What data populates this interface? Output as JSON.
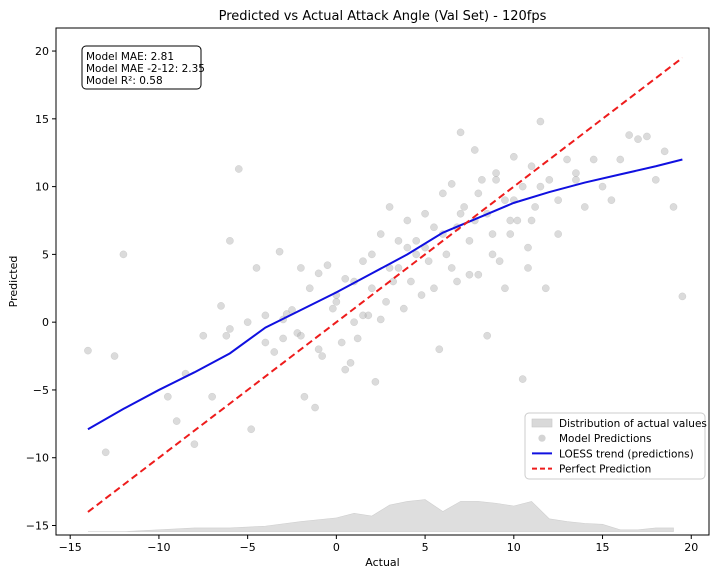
{
  "chart_data": {
    "type": "scatter",
    "title": "Predicted vs Actual Attack Angle (Val Set) - 120fps",
    "xlabel": "Actual",
    "ylabel": "Predicted",
    "xlim": [
      -15.8,
      21.0
    ],
    "ylim": [
      -15.7,
      21.7
    ],
    "xticks": [
      -15,
      -10,
      -5,
      0,
      5,
      10,
      15,
      20
    ],
    "yticks": [
      -15,
      -10,
      -5,
      0,
      5,
      10,
      15,
      20
    ],
    "grid": false,
    "legend_position": "lower-right",
    "stats_box": [
      "Model MAE: 2.81",
      "Model MAE -2-12: 2.35",
      "Model R²: 0.58"
    ],
    "legend": [
      {
        "label": "Distribution of actual values",
        "kind": "area",
        "color": "#d9d9d9"
      },
      {
        "label": "Model Predictions",
        "kind": "point",
        "color": "#b0b0b0"
      },
      {
        "label": "LOESS trend (predictions)",
        "kind": "line",
        "color": "#1010e0"
      },
      {
        "label": "Perfect Prediction",
        "kind": "dashed",
        "color": "#ee1c1c"
      }
    ],
    "series": [
      {
        "name": "LOESS trend (predictions)",
        "color": "#1010e0",
        "x": [
          -14,
          -12,
          -10,
          -8,
          -6,
          -4,
          -2,
          0,
          2,
          4,
          6,
          8,
          10,
          12,
          14,
          16,
          18,
          19.5
        ],
        "y": [
          -7.9,
          -6.4,
          -5.0,
          -3.7,
          -2.3,
          -0.4,
          0.9,
          2.2,
          3.6,
          5.0,
          6.6,
          7.7,
          8.8,
          9.6,
          10.3,
          10.9,
          11.5,
          12.0
        ]
      },
      {
        "name": "Perfect Prediction",
        "color": "#ee1c1c",
        "x": [
          -14,
          19.5
        ],
        "y": [
          -14,
          19.5
        ]
      }
    ],
    "distribution": {
      "name": "Distribution of actual values",
      "color": "#d9d9d9",
      "x": [
        -14,
        -12,
        -10,
        -8,
        -6,
        -4,
        -2,
        0,
        1,
        2,
        3,
        4,
        5,
        6,
        7,
        8,
        9,
        10,
        11,
        12,
        13,
        14,
        15,
        16,
        17,
        18,
        19
      ],
      "density": [
        0.0,
        0.0,
        0.1,
        0.2,
        0.2,
        0.3,
        0.55,
        0.75,
        1.0,
        0.85,
        1.45,
        1.65,
        1.75,
        1.1,
        1.65,
        1.65,
        1.55,
        1.4,
        1.65,
        0.7,
        0.55,
        0.45,
        0.4,
        0.1,
        0.1,
        0.2,
        0.2
      ]
    },
    "points": {
      "name": "Model Predictions",
      "color": "#b0b0b0",
      "x": [
        -14,
        -13,
        -12.5,
        -12,
        -9.5,
        -9,
        -8.5,
        -8,
        -7.5,
        -7,
        -6.5,
        -6.2,
        -6,
        -5.5,
        -5,
        -4.8,
        -4.5,
        -4,
        -3.5,
        -3.2,
        -3,
        -2.8,
        -2.5,
        -2.2,
        -2,
        -1.8,
        -1.5,
        -1.2,
        -1,
        -0.8,
        -0.5,
        -0.2,
        0,
        0.3,
        0.5,
        0.8,
        1,
        1.2,
        1.5,
        1.8,
        2,
        2.2,
        2.5,
        2.8,
        3,
        3.2,
        3.5,
        3.8,
        4,
        4.2,
        4.5,
        4.8,
        5,
        5.2,
        5.5,
        5.8,
        6,
        6.2,
        6.5,
        6.8,
        7,
        7.2,
        7.5,
        7.8,
        8,
        8.2,
        8.5,
        8.8,
        9,
        9.2,
        9.5,
        9.8,
        10,
        10.2,
        10.5,
        10.8,
        11,
        11.2,
        11.5,
        11.8,
        12,
        12.5,
        13,
        13.5,
        14,
        14.5,
        15,
        15.5,
        16,
        16.5,
        17,
        17.5,
        18,
        18.5,
        19,
        19.5,
        5,
        6,
        7,
        8,
        9,
        10,
        11,
        3,
        4,
        2,
        1,
        0,
        -1,
        8.5,
        9.5,
        10.5,
        7.5,
        6.5,
        5.5,
        4.5,
        3.5,
        2.5,
        11.5,
        12.5,
        13.5,
        -3,
        -2,
        -4,
        -6,
        0.5,
        1.5,
        6.8,
        7.8,
        8.8,
        9.8,
        10.8
      ],
      "y": [
        -2.1,
        -9.6,
        -2.5,
        5.0,
        -5.5,
        -7.3,
        -3.8,
        -9.0,
        -1.0,
        -5.5,
        1.2,
        -1.0,
        6.0,
        11.3,
        0.0,
        -7.9,
        4.0,
        0.5,
        -2.2,
        5.2,
        -1.2,
        0.6,
        0.9,
        -0.8,
        4.0,
        -5.5,
        2.5,
        -6.3,
        3.6,
        -2.5,
        4.2,
        1.0,
        2.0,
        -1.5,
        3.2,
        -3.0,
        3.0,
        -1.2,
        4.5,
        0.5,
        5.0,
        -4.4,
        6.5,
        1.5,
        8.5,
        3.0,
        6.0,
        1.0,
        7.5,
        3.0,
        6.0,
        2.0,
        8.0,
        4.5,
        7.0,
        -2.0,
        9.5,
        5.0,
        10.2,
        3.0,
        14.0,
        8.5,
        6.0,
        12.7,
        3.5,
        10.5,
        8.0,
        5.0,
        11.0,
        4.5,
        9.0,
        6.5,
        12.2,
        7.5,
        10.0,
        4.0,
        11.5,
        8.5,
        14.8,
        2.5,
        10.5,
        9.0,
        12.0,
        10.5,
        8.5,
        12.0,
        10.0,
        9.0,
        12.0,
        13.8,
        13.5,
        13.7,
        10.5,
        12.6,
        8.5,
        1.9,
        5.5,
        6.5,
        8.0,
        9.5,
        10.5,
        9.0,
        7.5,
        4.0,
        5.5,
        2.5,
        0.0,
        1.5,
        -2.0,
        -1.0,
        2.5,
        -4.2,
        3.5,
        4.0,
        2.5,
        5.0,
        4.0,
        0.2,
        10.0,
        6.5,
        11.0,
        0.2,
        -1.0,
        -1.5,
        -0.5,
        -3.5,
        0.5,
        7.0,
        7.5,
        6.5,
        7.5,
        5.5
      ]
    }
  }
}
